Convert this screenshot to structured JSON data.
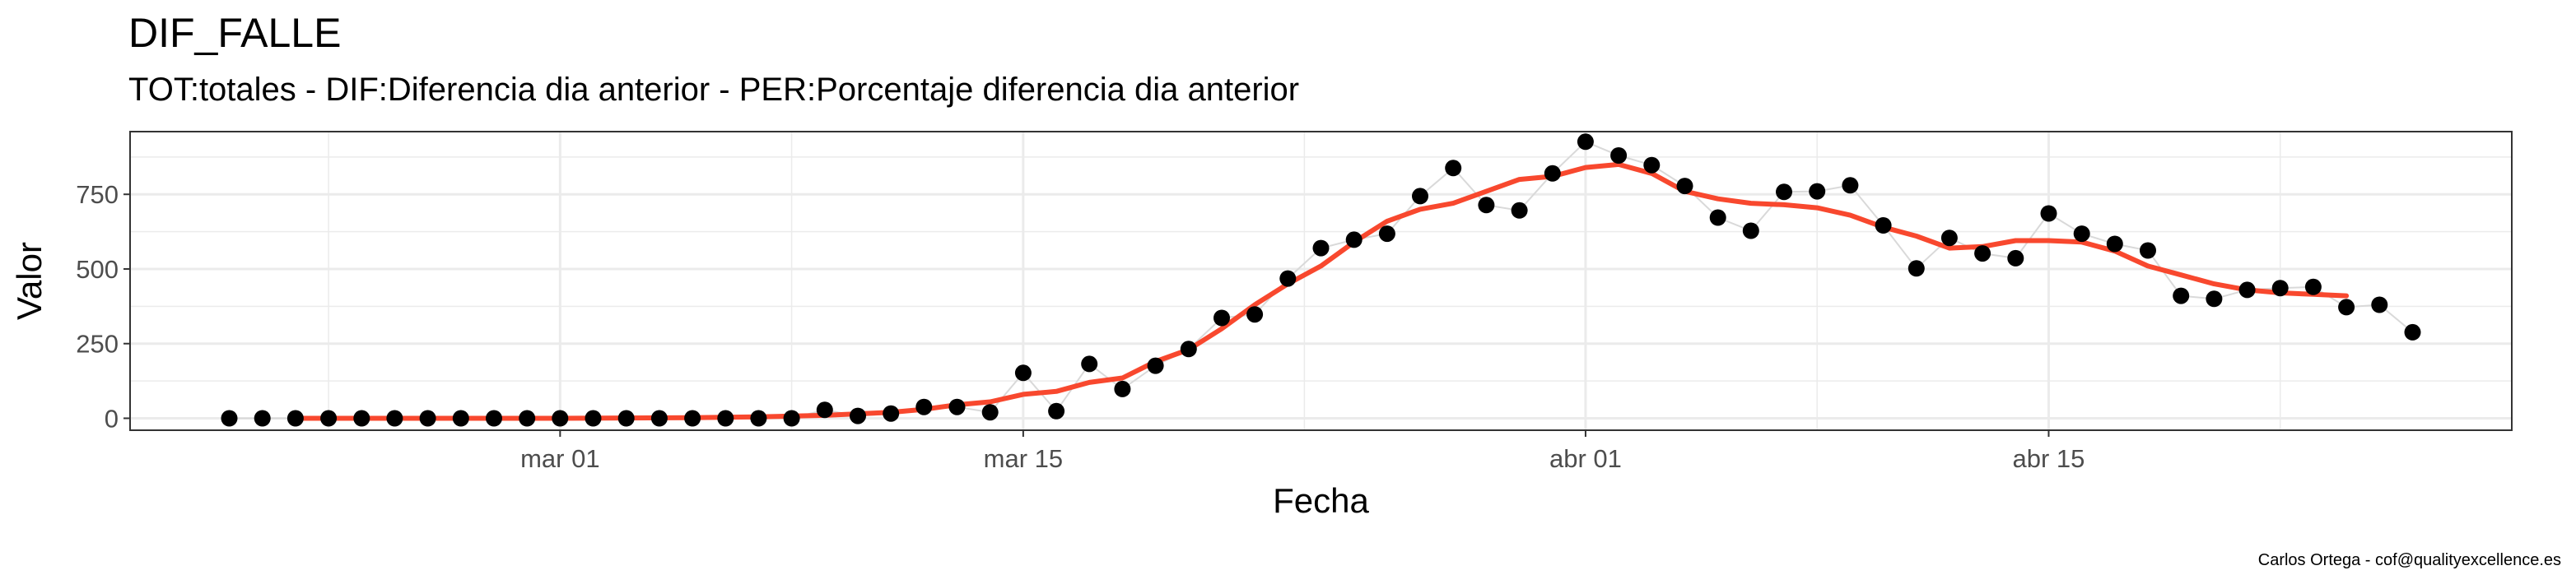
{
  "title": "DIF_FALLE",
  "subtitle": "TOT:totales - DIF:Diferencia dia anterior - PER:Porcentaje diferencia dia anterior",
  "caption": "Carlos Ortega - cof@qualityexcellence.es",
  "colors": {
    "points": "#000000",
    "smooth_line": "#F8482E",
    "connector": "#D9D9D9",
    "grid": "#EBEBEB",
    "panel_border": "#333333"
  },
  "chart_data": {
    "type": "scatter",
    "xlabel": "Fecha",
    "ylabel": "Valor",
    "x_ticks": [
      {
        "date": "2020-03-01",
        "label": "mar 01"
      },
      {
        "date": "2020-03-15",
        "label": "mar 15"
      },
      {
        "date": "2020-04-01",
        "label": "abr 01"
      },
      {
        "date": "2020-04-15",
        "label": "abr 15"
      }
    ],
    "y_ticks": [
      0,
      250,
      500,
      750
    ],
    "xlim": [
      "2020-02-17",
      "2020-04-29"
    ],
    "ylim": [
      -40,
      960
    ],
    "grid": true,
    "legend": "none",
    "series": [
      {
        "type": "points",
        "x": [
          "2020-02-20",
          "2020-02-21",
          "2020-02-22",
          "2020-02-23",
          "2020-02-24",
          "2020-02-25",
          "2020-02-26",
          "2020-02-27",
          "2020-02-28",
          "2020-02-29",
          "2020-03-01",
          "2020-03-02",
          "2020-03-03",
          "2020-03-04",
          "2020-03-05",
          "2020-03-06",
          "2020-03-07",
          "2020-03-08",
          "2020-03-09",
          "2020-03-10",
          "2020-03-11",
          "2020-03-12",
          "2020-03-13",
          "2020-03-14",
          "2020-03-15",
          "2020-03-16",
          "2020-03-17",
          "2020-03-18",
          "2020-03-19",
          "2020-03-20",
          "2020-03-21",
          "2020-03-22",
          "2020-03-23",
          "2020-03-24",
          "2020-03-25",
          "2020-03-26",
          "2020-03-27",
          "2020-03-28",
          "2020-03-29",
          "2020-03-30",
          "2020-03-31",
          "2020-04-01",
          "2020-04-02",
          "2020-04-03",
          "2020-04-04",
          "2020-04-05",
          "2020-04-06",
          "2020-04-07",
          "2020-04-08",
          "2020-04-09",
          "2020-04-10",
          "2020-04-11",
          "2020-04-12",
          "2020-04-13",
          "2020-04-14",
          "2020-04-15",
          "2020-04-16",
          "2020-04-17",
          "2020-04-18",
          "2020-04-19",
          "2020-04-20",
          "2020-04-21",
          "2020-04-22",
          "2020-04-23",
          "2020-04-24",
          "2020-04-25",
          "2020-04-26"
        ],
        "values": [
          0,
          0,
          0,
          0,
          0,
          0,
          0,
          0,
          0,
          0,
          0,
          0,
          0,
          0,
          0,
          0,
          0,
          0,
          28,
          8,
          16,
          38,
          38,
          20,
          152,
          24,
          182,
          98,
          176,
          232,
          336,
          348,
          468,
          570,
          598,
          618,
          744,
          838,
          714,
          696,
          820,
          926,
          880,
          848,
          778,
          672,
          628,
          758,
          760,
          780,
          646,
          502,
          604,
          552,
          536,
          686,
          618,
          584,
          562,
          410,
          400,
          430,
          436,
          440,
          372,
          380,
          288
        ]
      },
      {
        "type": "smooth",
        "x": [
          "2020-02-22",
          "2020-03-01",
          "2020-03-05",
          "2020-03-07",
          "2020-03-09",
          "2020-03-11",
          "2020-03-12",
          "2020-03-13",
          "2020-03-14",
          "2020-03-15",
          "2020-03-16",
          "2020-03-17",
          "2020-03-18",
          "2020-03-19",
          "2020-03-20",
          "2020-03-21",
          "2020-03-22",
          "2020-03-23",
          "2020-03-24",
          "2020-03-25",
          "2020-03-26",
          "2020-03-27",
          "2020-03-28",
          "2020-03-29",
          "2020-03-30",
          "2020-03-31",
          "2020-04-01",
          "2020-04-02",
          "2020-04-03",
          "2020-04-04",
          "2020-04-05",
          "2020-04-06",
          "2020-04-07",
          "2020-04-08",
          "2020-04-09",
          "2020-04-10",
          "2020-04-11",
          "2020-04-12",
          "2020-04-13",
          "2020-04-14",
          "2020-04-15",
          "2020-04-16",
          "2020-04-17",
          "2020-04-18",
          "2020-04-19",
          "2020-04-20",
          "2020-04-21",
          "2020-04-22",
          "2020-04-23",
          "2020-04-24"
        ],
        "values": [
          0,
          0,
          2,
          5,
          10,
          20,
          30,
          45,
          55,
          80,
          90,
          120,
          135,
          190,
          230,
          300,
          380,
          450,
          510,
          590,
          660,
          700,
          720,
          760,
          800,
          810,
          840,
          850,
          820,
          760,
          735,
          720,
          715,
          705,
          680,
          640,
          610,
          570,
          575,
          595,
          595,
          590,
          560,
          510,
          480,
          450,
          430,
          420,
          415,
          410
        ]
      }
    ]
  }
}
